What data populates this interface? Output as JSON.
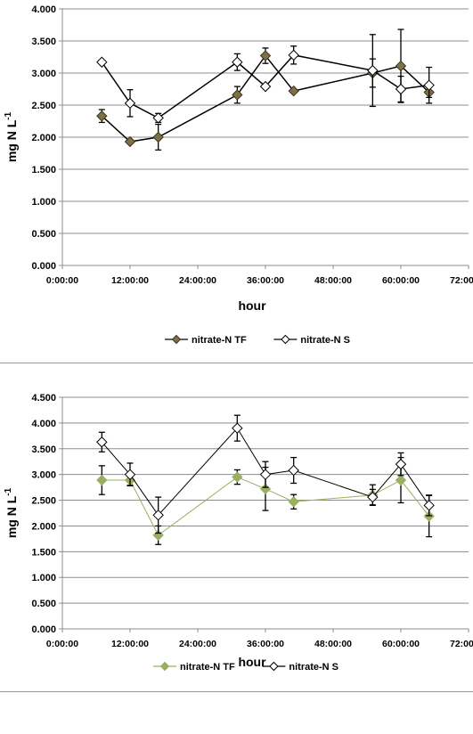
{
  "chart_data": [
    {
      "type": "line",
      "title": "",
      "xlabel": "hour",
      "ylabel": "mg N L",
      "ylabel_superscript": "-1",
      "ylim": [
        0,
        4
      ],
      "xlim_hours": [
        0,
        72
      ],
      "y_ticks": [
        "0.000",
        "0.500",
        "1.000",
        "1.500",
        "2.000",
        "2.500",
        "3.000",
        "3.500",
        "4.000"
      ],
      "x_ticks": [
        "0:00:00",
        "12:00:00",
        "24:00:00",
        "36:00:00",
        "48:00:00",
        "60:00:00",
        "72:00:00"
      ],
      "grid": "horizontal",
      "legend_position": "bottom",
      "series": [
        {
          "name": "nitrate-N TF",
          "color": "#7f6f45",
          "marker": "diamond-filled",
          "x": [
            "7:00:00",
            "12:00:00",
            "17:00:00",
            "31:00:00",
            "36:00:00",
            "41:00:00",
            "55:00:00",
            "60:00:00",
            "65:00:00"
          ],
          "x_hours": [
            7,
            12,
            17,
            31,
            36,
            41,
            55,
            60,
            65
          ],
          "values": [
            2.33,
            1.93,
            2.0,
            2.66,
            3.27,
            2.72,
            3.0,
            3.11,
            2.7
          ],
          "err": [
            0.1,
            0.03,
            0.2,
            0.13,
            0.12,
            0.03,
            0.22,
            0.57,
            0.08
          ]
        },
        {
          "name": "nitrate-N S",
          "color": "#000000",
          "marker": "diamond-open",
          "x": [
            "7:00:00",
            "12:00:00",
            "17:00:00",
            "31:00:00",
            "36:00:00",
            "41:00:00",
            "55:00:00",
            "60:00:00",
            "65:00:00"
          ],
          "x_hours": [
            7,
            12,
            17,
            31,
            36,
            41,
            55,
            60,
            65
          ],
          "values": [
            3.17,
            2.53,
            2.3,
            3.17,
            2.79,
            3.28,
            3.04,
            2.75,
            2.81
          ],
          "err": [
            0.0,
            0.21,
            0.07,
            0.13,
            0.0,
            0.14,
            0.56,
            0.2,
            0.28
          ]
        }
      ]
    },
    {
      "type": "line",
      "title": "",
      "xlabel": "hour",
      "ylabel": "mg N L",
      "ylabel_superscript": "-1",
      "ylim": [
        0,
        4.5
      ],
      "xlim_hours": [
        0,
        72
      ],
      "y_ticks": [
        "0.000",
        "0.500",
        "1.000",
        "1.500",
        "2.000",
        "2.500",
        "3.000",
        "3.500",
        "4.000",
        "4.500"
      ],
      "x_ticks": [
        "0:00:00",
        "12:00:00",
        "24:00:00",
        "36:00:00",
        "48:00:00",
        "60:00:00",
        "72:00:00"
      ],
      "grid": "horizontal",
      "legend_position": "bottom",
      "series": [
        {
          "name": "nitrate-N TF",
          "color": "#9aaf5f",
          "marker": "diamond-filled",
          "x": [
            "7:00:00",
            "12:00:00",
            "17:00:00",
            "31:00:00",
            "36:00:00",
            "41:00:00",
            "55:00:00",
            "60:00:00",
            "65:00:00"
          ],
          "x_hours": [
            7,
            12,
            17,
            31,
            36,
            41,
            55,
            60,
            65
          ],
          "values": [
            2.89,
            2.89,
            1.82,
            2.95,
            2.72,
            2.47,
            2.6,
            2.89,
            2.19
          ],
          "err": [
            0.28,
            0.1,
            0.18,
            0.14,
            0.42,
            0.14,
            0.2,
            0.44,
            0.4
          ]
        },
        {
          "name": "nitrate-N S",
          "color": "#000000",
          "marker": "diamond-open",
          "x": [
            "7:00:00",
            "12:00:00",
            "17:00:00",
            "31:00:00",
            "36:00:00",
            "41:00:00",
            "55:00:00",
            "60:00:00",
            "65:00:00"
          ],
          "x_hours": [
            7,
            12,
            17,
            31,
            36,
            41,
            55,
            60,
            65
          ],
          "values": [
            3.63,
            3.0,
            2.21,
            3.9,
            3.0,
            3.08,
            2.56,
            3.2,
            2.4
          ],
          "err": [
            0.19,
            0.22,
            0.35,
            0.25,
            0.25,
            0.25,
            0.15,
            0.22,
            0.2
          ]
        }
      ]
    }
  ]
}
